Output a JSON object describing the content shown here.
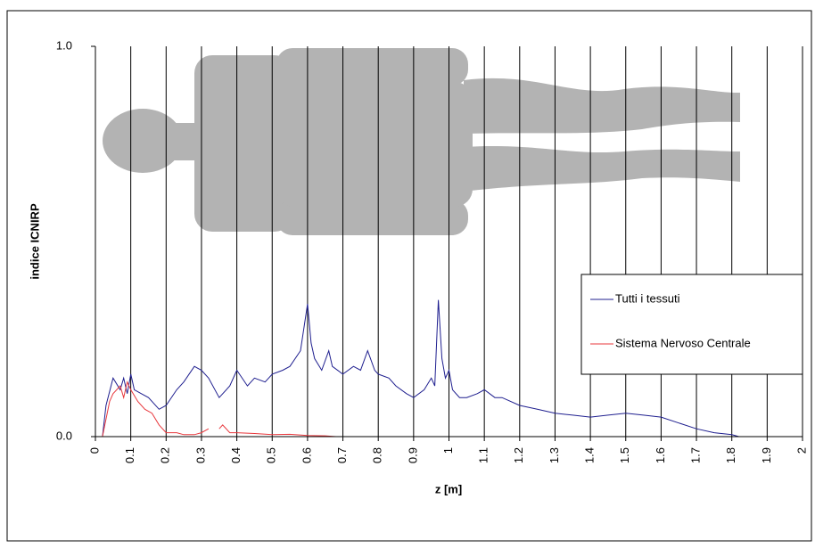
{
  "chart_data": {
    "type": "line",
    "ylabel": "indice ICNIRP",
    "xlabel": "z [m]",
    "xlim": [
      0,
      2
    ],
    "ylim": [
      0,
      1
    ],
    "xticks": [
      0,
      0.1,
      0.2,
      0.3,
      0.4,
      0.5,
      0.6,
      0.7,
      0.8,
      0.9,
      1,
      1.1,
      1.2,
      1.3,
      1.4,
      1.5,
      1.6,
      1.7,
      1.8,
      1.9,
      2
    ],
    "yticks": [
      {
        "value": 0,
        "label": "0.0"
      },
      {
        "value": 1,
        "label": "1.0"
      }
    ],
    "grid": true,
    "legend": "right",
    "series": [
      {
        "name": "Tutti i tessuti",
        "color": "#1f1f8f",
        "x": [
          0.02,
          0.03,
          0.05,
          0.07,
          0.08,
          0.09,
          0.1,
          0.11,
          0.13,
          0.15,
          0.18,
          0.2,
          0.23,
          0.25,
          0.28,
          0.3,
          0.32,
          0.35,
          0.38,
          0.4,
          0.43,
          0.45,
          0.48,
          0.5,
          0.53,
          0.55,
          0.58,
          0.6,
          0.61,
          0.62,
          0.64,
          0.66,
          0.67,
          0.7,
          0.73,
          0.75,
          0.77,
          0.79,
          0.8,
          0.83,
          0.85,
          0.88,
          0.9,
          0.93,
          0.95,
          0.96,
          0.97,
          0.98,
          0.99,
          1.0,
          1.01,
          1.03,
          1.05,
          1.08,
          1.1,
          1.13,
          1.15,
          1.2,
          1.25,
          1.3,
          1.35,
          1.4,
          1.45,
          1.5,
          1.55,
          1.6,
          1.65,
          1.7,
          1.75,
          1.8,
          1.82
        ],
        "values": [
          0,
          0.08,
          0.15,
          0.12,
          0.15,
          0.11,
          0.16,
          0.12,
          0.11,
          0.1,
          0.07,
          0.08,
          0.12,
          0.14,
          0.18,
          0.17,
          0.15,
          0.1,
          0.13,
          0.17,
          0.13,
          0.15,
          0.14,
          0.16,
          0.17,
          0.18,
          0.22,
          0.34,
          0.24,
          0.2,
          0.17,
          0.22,
          0.18,
          0.16,
          0.18,
          0.17,
          0.22,
          0.17,
          0.16,
          0.15,
          0.13,
          0.11,
          0.1,
          0.12,
          0.15,
          0.13,
          0.35,
          0.2,
          0.15,
          0.17,
          0.12,
          0.1,
          0.1,
          0.11,
          0.12,
          0.1,
          0.1,
          0.08,
          0.07,
          0.06,
          0.055,
          0.05,
          0.055,
          0.06,
          0.055,
          0.05,
          0.035,
          0.02,
          0.01,
          0.005,
          0
        ]
      },
      {
        "name": "Sistema Nervoso Centrale",
        "color": "#e8383d",
        "x": [
          0.02,
          0.04,
          0.05,
          0.07,
          0.08,
          0.09,
          0.1,
          0.12,
          0.14,
          0.16,
          0.18,
          0.2,
          0.23,
          0.25,
          0.28,
          0.3,
          0.32,
          0.33,
          0.35,
          0.36,
          0.38,
          0.4,
          0.45,
          0.5,
          0.55,
          0.6,
          0.65,
          0.68
        ],
        "values": [
          0,
          0.09,
          0.11,
          0.13,
          0.1,
          0.14,
          0.12,
          0.09,
          0.07,
          0.06,
          0.03,
          0.01,
          0.01,
          0.005,
          0.005,
          0.01,
          0.02,
          null,
          0.02,
          0.03,
          0.01,
          0.01,
          0.008,
          0.005,
          0.006,
          0.003,
          0.002,
          0
        ]
      }
    ]
  }
}
